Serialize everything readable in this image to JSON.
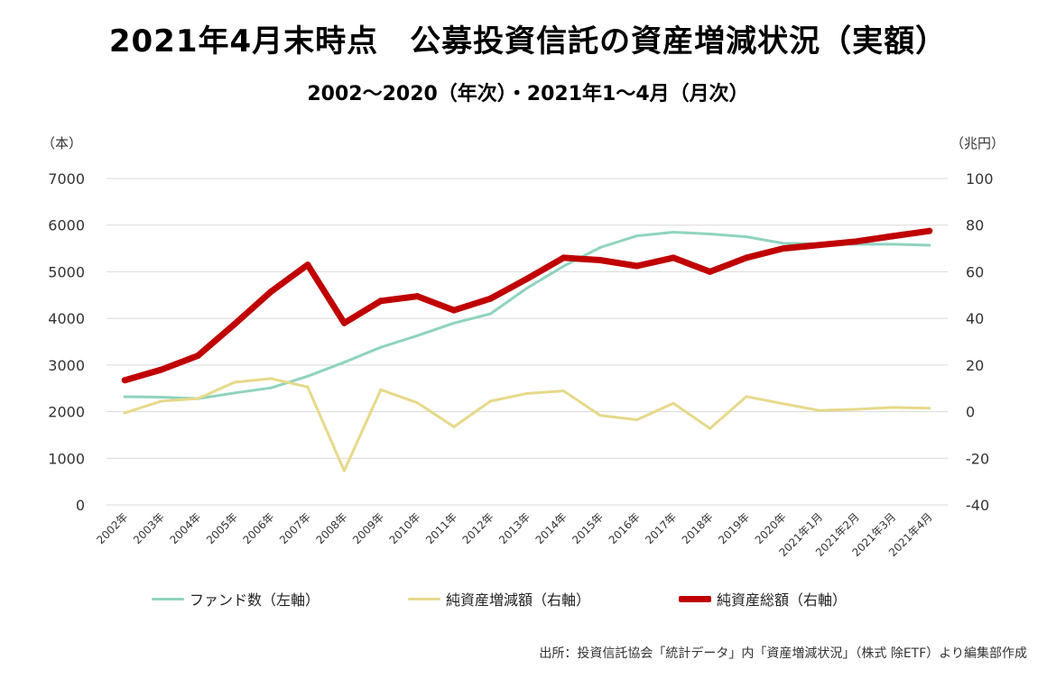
{
  "title": "2021年4月末時点　公募投資信託の資産増減状況（実額）",
  "subtitle": "2002～2020（年次）・2021年1～4月（月次）",
  "units": {
    "left": "（本）",
    "right": "（兆円）"
  },
  "source": "出所：投資信託協会「統計データ」内「資産増減状況」（株式 除ETF）より編集部作成",
  "chart_data": {
    "type": "line",
    "categories": [
      "2002年",
      "2003年",
      "2004年",
      "2005年",
      "2006年",
      "2007年",
      "2008年",
      "2009年",
      "2010年",
      "2011年",
      "2012年",
      "2013年",
      "2014年",
      "2015年",
      "2016年",
      "2017年",
      "2018年",
      "2019年",
      "2020年",
      "2021年1月",
      "2021年2月",
      "2021年3月",
      "2021年4月"
    ],
    "y_left": {
      "ylim": [
        0,
        7000
      ],
      "ticks": [
        "0",
        "1000",
        "2000",
        "3000",
        "4000",
        "5000",
        "6000",
        "7000"
      ]
    },
    "y_right": {
      "ylim": [
        -40,
        100
      ],
      "ticks": [
        "-40",
        "-20",
        "0",
        "20",
        "40",
        "60",
        "80",
        "100"
      ],
      "negative_color": "#e0141a",
      "positive_color": "#333333"
    },
    "grid": true,
    "legend_position": "bottom",
    "series": [
      {
        "name": "ファンド数（左軸）",
        "axis": "left",
        "color": "#8fd3bf",
        "width": 3,
        "values": [
          2320,
          2310,
          2280,
          2400,
          2510,
          2760,
          3060,
          3380,
          3630,
          3900,
          4100,
          4650,
          5120,
          5520,
          5770,
          5850,
          5810,
          5750,
          5610,
          5600,
          5590,
          5590,
          5570
        ]
      },
      {
        "name": "純資産増減額（右軸）",
        "axis": "right",
        "color": "#e6d98a",
        "width": 3,
        "values": [
          -0.5,
          4.5,
          5.6,
          12.6,
          14.2,
          10.6,
          -25.4,
          9.4,
          3.8,
          -6.5,
          4.5,
          7.8,
          8.9,
          -1.6,
          -3.5,
          3.6,
          -7.2,
          6.5,
          3.4,
          0.5,
          1.0,
          1.8,
          1.5
        ]
      },
      {
        "name": "純資産総額（右軸）",
        "axis": "right",
        "color": "#c00000",
        "width": 7,
        "values": [
          13.5,
          18.0,
          24.0,
          37.5,
          51.5,
          63.0,
          38.0,
          47.5,
          49.5,
          43.5,
          48.5,
          57.0,
          66.0,
          65.0,
          62.5,
          66.0,
          60.0,
          66.0,
          70.0,
          71.5,
          73.0,
          75.3,
          77.5
        ]
      }
    ]
  }
}
